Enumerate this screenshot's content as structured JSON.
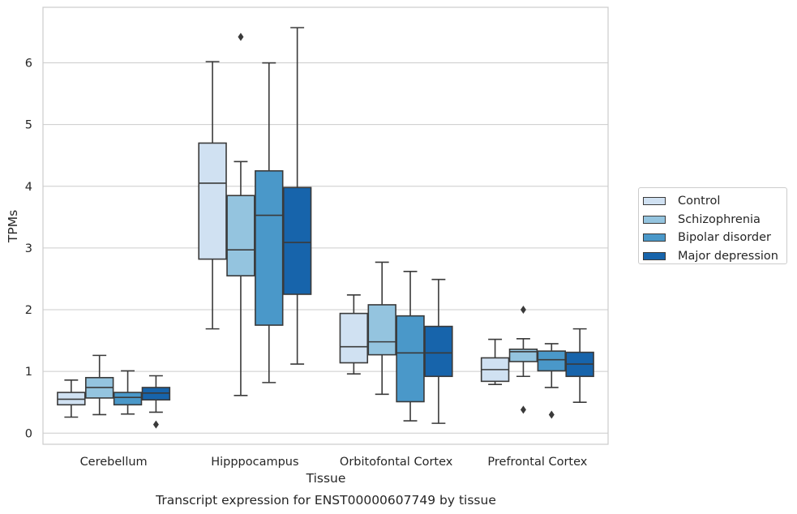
{
  "chart_data": {
    "type": "box",
    "title": "Transcript expression for ENST00000607749 by tissue",
    "xlabel": "Tissue",
    "ylabel": "TPMs",
    "ylim": [
      -0.18,
      6.9
    ],
    "yticks": [
      0,
      1,
      2,
      3,
      4,
      5,
      6
    ],
    "grid": "horizontal",
    "legend_position": "right",
    "categories": [
      "Cerebellum",
      "Hipppocampus",
      "Orbitofontal Cortex",
      "Prefrontal Cortex"
    ],
    "series": [
      {
        "name": "Control",
        "color": "#d0e1f2",
        "boxes": [
          {
            "whisker_low": 0.26,
            "q1": 0.46,
            "median": 0.55,
            "q3": 0.66,
            "whisker_high": 0.86,
            "outliers": []
          },
          {
            "whisker_low": 1.69,
            "q1": 2.82,
            "median": 4.05,
            "q3": 4.7,
            "whisker_high": 6.02,
            "outliers": []
          },
          {
            "whisker_low": 0.96,
            "q1": 1.14,
            "median": 1.4,
            "q3": 1.94,
            "whisker_high": 2.24,
            "outliers": []
          },
          {
            "whisker_low": 0.79,
            "q1": 0.84,
            "median": 1.03,
            "q3": 1.22,
            "whisker_high": 1.52,
            "outliers": []
          }
        ]
      },
      {
        "name": "Schizophrenia",
        "color": "#94c4df",
        "boxes": [
          {
            "whisker_low": 0.3,
            "q1": 0.57,
            "median": 0.74,
            "q3": 0.9,
            "whisker_high": 1.26,
            "outliers": []
          },
          {
            "whisker_low": 0.61,
            "q1": 2.55,
            "median": 2.97,
            "q3": 3.85,
            "whisker_high": 4.4,
            "outliers": [
              6.42
            ]
          },
          {
            "whisker_low": 0.63,
            "q1": 1.27,
            "median": 1.48,
            "q3": 2.08,
            "whisker_high": 2.77,
            "outliers": []
          },
          {
            "whisker_low": 0.92,
            "q1": 1.16,
            "median": 1.32,
            "q3": 1.36,
            "whisker_high": 1.53,
            "outliers": [
              2.0,
              0.38
            ]
          }
        ]
      },
      {
        "name": "Bipolar disorder",
        "color": "#4a98c9",
        "boxes": [
          {
            "whisker_low": 0.31,
            "q1": 0.46,
            "median": 0.58,
            "q3": 0.66,
            "whisker_high": 1.01,
            "outliers": []
          },
          {
            "whisker_low": 0.82,
            "q1": 1.75,
            "median": 3.53,
            "q3": 4.25,
            "whisker_high": 6.0,
            "outliers": []
          },
          {
            "whisker_low": 0.2,
            "q1": 0.51,
            "median": 1.3,
            "q3": 1.9,
            "whisker_high": 2.62,
            "outliers": []
          },
          {
            "whisker_low": 0.74,
            "q1": 1.01,
            "median": 1.19,
            "q3": 1.33,
            "whisker_high": 1.45,
            "outliers": [
              0.3
            ]
          }
        ]
      },
      {
        "name": "Major depression",
        "color": "#1764ab",
        "boxes": [
          {
            "whisker_low": 0.34,
            "q1": 0.54,
            "median": 0.65,
            "q3": 0.74,
            "whisker_high": 0.93,
            "outliers": [
              0.14
            ]
          },
          {
            "whisker_low": 1.12,
            "q1": 2.25,
            "median": 3.09,
            "q3": 3.98,
            "whisker_high": 6.57,
            "outliers": []
          },
          {
            "whisker_low": 0.16,
            "q1": 0.92,
            "median": 1.3,
            "q3": 1.73,
            "whisker_high": 2.49,
            "outliers": []
          },
          {
            "whisker_low": 0.5,
            "q1": 0.92,
            "median": 1.12,
            "q3": 1.31,
            "whisker_high": 1.69,
            "outliers": []
          }
        ]
      }
    ]
  }
}
